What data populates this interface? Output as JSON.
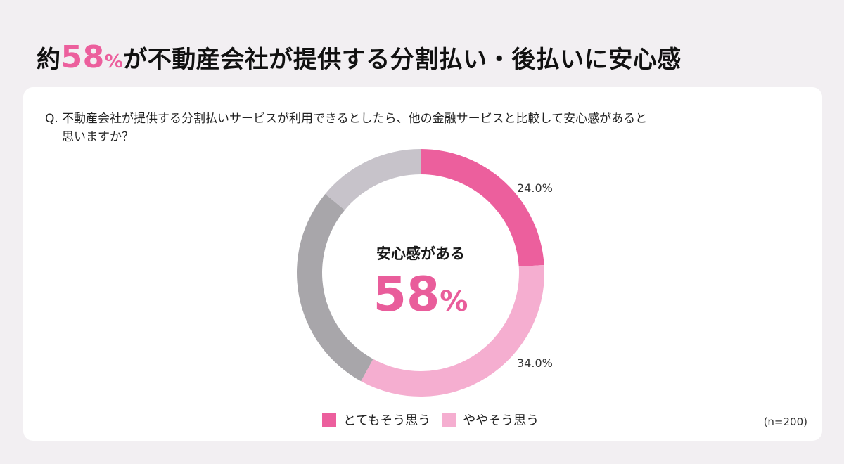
{
  "headline": {
    "prefix": "約",
    "number": "58",
    "percent": "%",
    "suffix": "が不動産会社が提供する分割払い・後払いに安心感"
  },
  "question": {
    "prefix": "Q.",
    "line1": "不動産会社が提供する分割払いサービスが利用できるとしたら、他の金融サービスと比較して安心感があると",
    "line2": "思いますか？"
  },
  "center": {
    "label": "安心感がある",
    "value": "58",
    "unit": "%"
  },
  "labels": {
    "seg1": "24.0%",
    "seg2": "34.0%"
  },
  "legend": [
    {
      "label": "とてもそう思う",
      "color": "#ec5f9d"
    },
    {
      "label": "ややそう思う",
      "color": "#f5aed0"
    }
  ],
  "sample_size": "(n=200)",
  "colors": {
    "accent": "#ec5f9d",
    "light_pink": "#f5aed0",
    "dark_gray": "#a8a6aa",
    "light_gray": "#c7c3ca"
  },
  "chart_data": {
    "type": "pie",
    "subtype": "donut",
    "title": "約58%が不動産会社が提供する分割払い・後払いに安心感",
    "question": "不動産会社が提供する分割払いサービスが利用できるとしたら、他の金融サービスと比較して安心感があると思いますか？",
    "center_text": "安心感がある 58%",
    "categories": [
      "とてもそう思う",
      "ややそう思う",
      "(unlabeled gray 1)",
      "(unlabeled gray 2)"
    ],
    "values": [
      24.0,
      34.0,
      28.0,
      14.0
    ],
    "labeled_values": {
      "とてもそう思う": 24.0,
      "ややそう思う": 34.0
    },
    "colors": [
      "#ec5f9d",
      "#f5aed0",
      "#a8a6aa",
      "#c7c3ca"
    ],
    "legend_position": "bottom",
    "n": 200
  }
}
